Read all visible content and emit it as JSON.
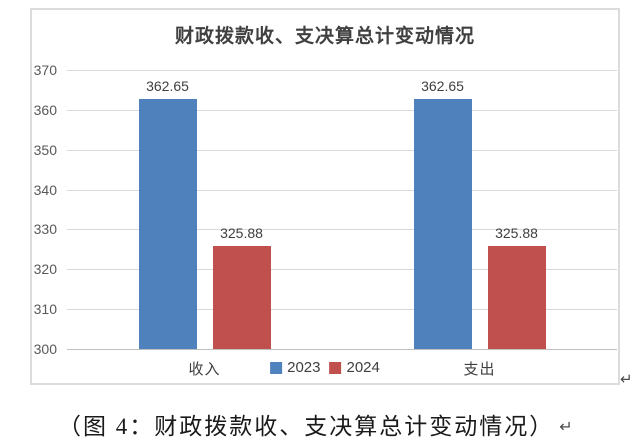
{
  "chart_data": {
    "type": "bar",
    "title": "财政拨款收、支决算总计变动情况",
    "categories": [
      "收入",
      "支出"
    ],
    "series": [
      {
        "name": "2023",
        "color": "#4F81BD",
        "values": [
          362.65,
          362.65
        ]
      },
      {
        "name": "2024",
        "color": "#C0504D",
        "values": [
          325.88,
          325.88
        ]
      }
    ],
    "ylim": [
      300,
      370
    ],
    "yticks": [
      300,
      310,
      320,
      330,
      340,
      350,
      360,
      370
    ],
    "ytick_step": 10,
    "xlabel": "",
    "ylabel": "",
    "grid": true,
    "data_labels": true,
    "legend_position": "bottom-center",
    "colors": {
      "gridline": "#D9D9D9",
      "axis_line": "#BFBFBF",
      "frame_border": "#DCDCDC",
      "axis_text": "#595959",
      "label_text": "#404040"
    }
  },
  "figure": {
    "caption": "（图 4：财政拨款收、支决算总计变动情况）",
    "paragraph_mark": "↵"
  }
}
